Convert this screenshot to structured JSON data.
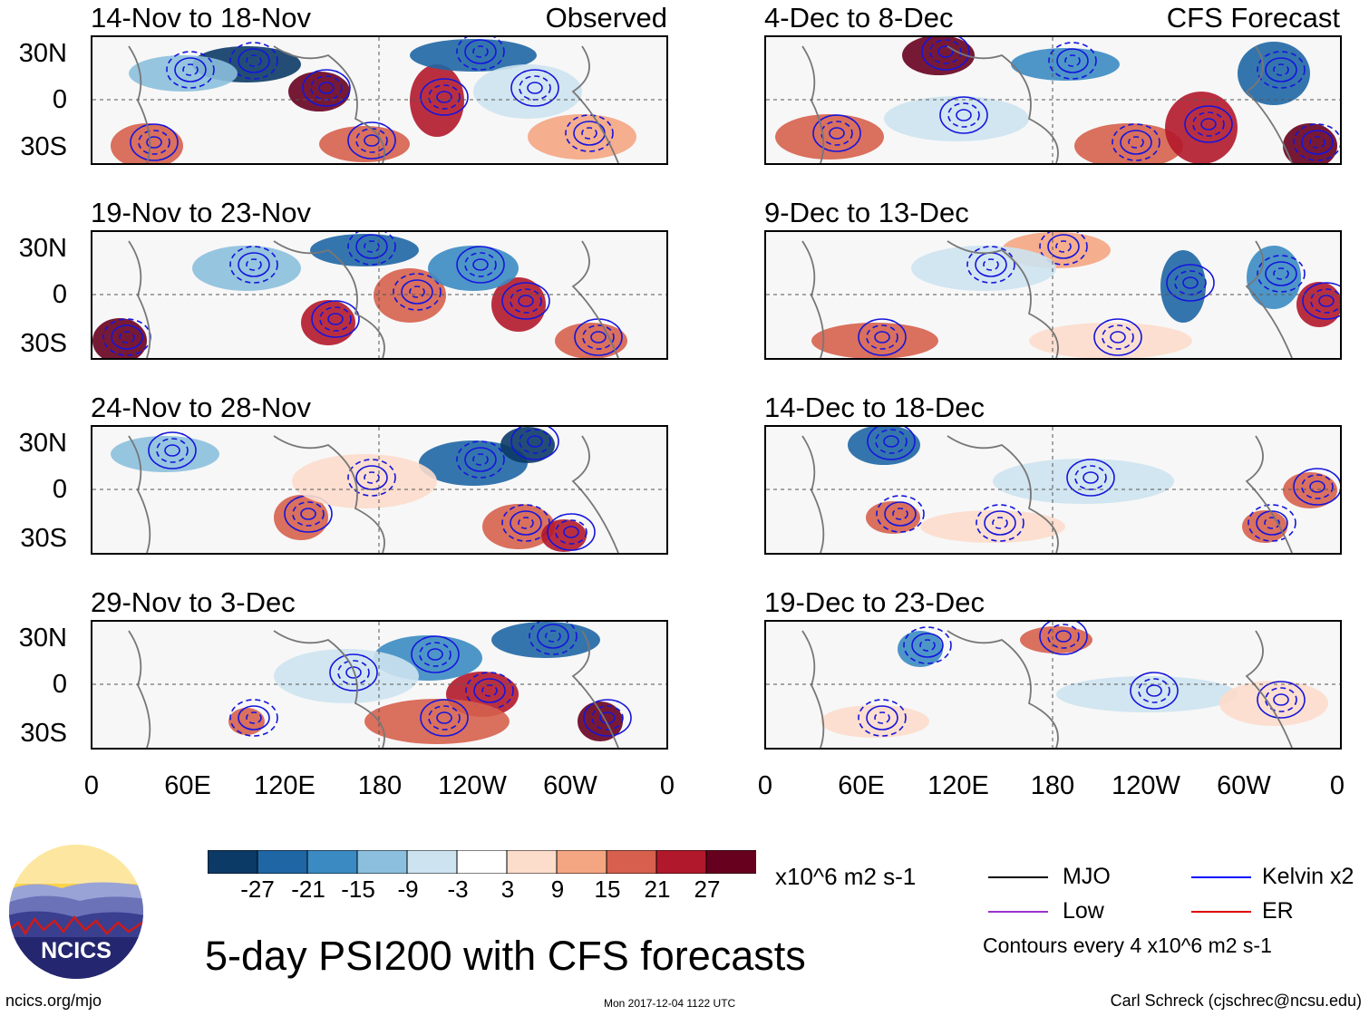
{
  "left_column_label": "Observed",
  "right_column_label": "CFS Forecast",
  "latitude_labels": [
    "30N",
    "0",
    "30S"
  ],
  "longitude_labels": [
    "0",
    "60E",
    "120E",
    "180",
    "120W",
    "60W",
    "0"
  ],
  "panels_left": [
    {
      "title": "14-Nov to 18-Nov"
    },
    {
      "title": "19-Nov to 23-Nov"
    },
    {
      "title": "24-Nov to 28-Nov"
    },
    {
      "title": "29-Nov to 3-Dec"
    }
  ],
  "panels_right": [
    {
      "title": "4-Dec to 8-Dec"
    },
    {
      "title": "9-Dec to 13-Dec"
    },
    {
      "title": "14-Dec to 18-Dec"
    },
    {
      "title": "19-Dec to 23-Dec"
    }
  ],
  "colorbar": {
    "colors": [
      "#0b3a66",
      "#1f66a4",
      "#3b8bc2",
      "#8bbfdd",
      "#cde3f0",
      "#ffffff",
      "#fcdccb",
      "#f4a582",
      "#d6604d",
      "#b2182b",
      "#67001f"
    ],
    "labels": [
      "-27",
      "-21",
      "-15",
      "-9",
      "-3",
      "3",
      "9",
      "15",
      "21",
      "27"
    ],
    "units": "x10^6 m2 s-1"
  },
  "legend": {
    "items": [
      {
        "label": "MJO",
        "color": "#000000"
      },
      {
        "label": "Kelvin x2",
        "color": "#0000ff"
      },
      {
        "label": "Low",
        "color": "#9933cc"
      },
      {
        "label": "ER",
        "color": "#dd0000"
      }
    ],
    "note": "Contours every 4 x10^6 m2 s-1"
  },
  "main_title": "5-day PSI200 with CFS forecasts",
  "logo_text": "NCICS",
  "footer": {
    "left": "ncics.org/mjo",
    "center": "Mon 2017-12-04 1122 UTC",
    "right": "Carl Schreck (cjschrec@ncsu.edu)"
  }
}
